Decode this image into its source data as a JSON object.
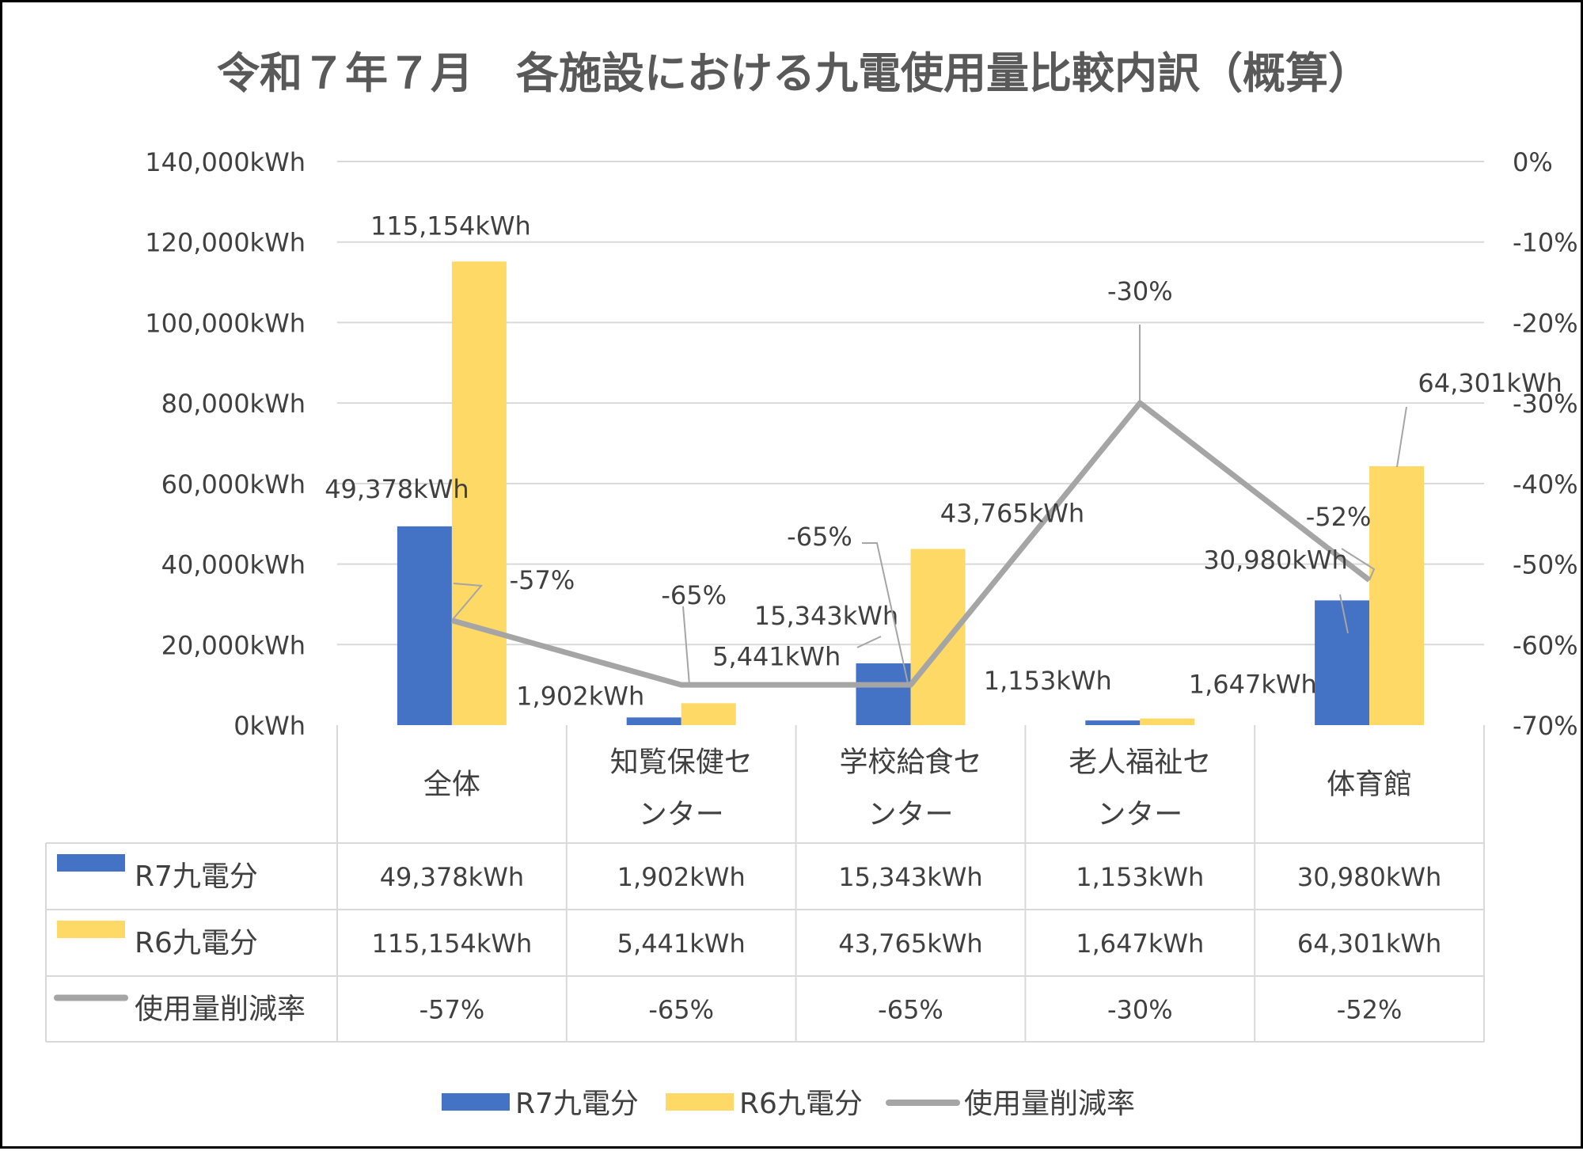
{
  "chart_data": {
    "type": "bar",
    "title": "令和７年７月　各施設における九電使用量比較内訳（概算）",
    "categories": [
      [
        "全体"
      ],
      [
        "知覧保健セ",
        "ンター"
      ],
      [
        "学校給食セ",
        "ンター"
      ],
      [
        "老人福祉セ",
        "ンター"
      ],
      [
        "体育館"
      ]
    ],
    "series": [
      {
        "name": "R7九電分",
        "type": "bar",
        "axis": "left",
        "color": "#4472C4",
        "values": [
          49378,
          1902,
          15343,
          1153,
          30980
        ],
        "labels": [
          "49,378kWh",
          "1,902kWh",
          "15,343kWh",
          "1,153kWh",
          "30,980kWh"
        ]
      },
      {
        "name": "R6九電分",
        "type": "bar",
        "axis": "left",
        "color": "#FFD966",
        "values": [
          115154,
          5441,
          43765,
          1647,
          64301
        ],
        "labels": [
          "115,154kWh",
          "5,441kWh",
          "43,765kWh",
          "1,647kWh",
          "64,301kWh"
        ]
      },
      {
        "name": "使用量削減率",
        "type": "line",
        "axis": "right",
        "color": "#A5A5A5",
        "values": [
          -57,
          -65,
          -65,
          -30,
          -52
        ],
        "labels": [
          "-57%",
          "-65%",
          "-65%",
          "-30%",
          "-52%"
        ]
      }
    ],
    "left_axis": {
      "ylim": [
        0,
        140000
      ],
      "ticks": [
        0,
        20000,
        40000,
        60000,
        80000,
        100000,
        120000,
        140000
      ],
      "tick_labels": [
        "0kWh",
        "20,000kWh",
        "40,000kWh",
        "60,000kWh",
        "80,000kWh",
        "100,000kWh",
        "120,000kWh",
        "140,000kWh"
      ]
    },
    "right_axis": {
      "ylim": [
        -70,
        0
      ],
      "ticks": [
        -70,
        -60,
        -50,
        -40,
        -30,
        -20,
        -10,
        0
      ],
      "tick_labels": [
        "-70%",
        "-60%",
        "-50%",
        "-40%",
        "-30%",
        "-20%",
        "-10%",
        "0%"
      ]
    },
    "grid": true,
    "data_table": true,
    "legend": "bottom",
    "gridline_color": "#D9D9D9"
  }
}
